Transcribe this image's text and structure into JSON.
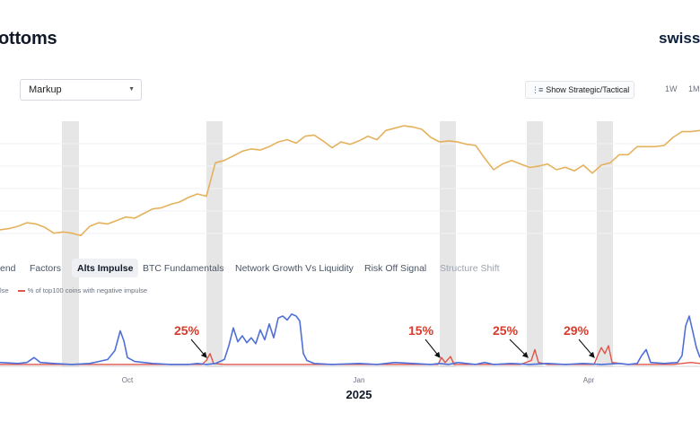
{
  "header": {
    "title": "ottoms",
    "brand": "swissb"
  },
  "controls": {
    "select_value": "Markup",
    "strategic_label": "Show Strategic/Tactical",
    "range_buttons": [
      "1W",
      "1M"
    ]
  },
  "tabs": [
    {
      "label": "end",
      "state": "normal"
    },
    {
      "label": "Factors",
      "state": "normal"
    },
    {
      "label": "Alts Impulse",
      "state": "active"
    },
    {
      "label": "BTC Fundamentals",
      "state": "normal"
    },
    {
      "label": "Network Growth Vs Liquidity",
      "state": "normal"
    },
    {
      "label": "Risk Off Signal",
      "state": "normal"
    },
    {
      "label": "Structure Shift",
      "state": "faded"
    }
  ],
  "legend": {
    "items": [
      {
        "label": "lse",
        "color": "#4f6fd8"
      },
      {
        "label": "% of top100 coins with negative impulse",
        "color": "#e0554a"
      }
    ]
  },
  "chart_data": [
    {
      "type": "line",
      "title": "",
      "ylabel": "",
      "color": "#e4b25c",
      "x": [
        0,
        10,
        20,
        30,
        40,
        50,
        60,
        70,
        80,
        90,
        100,
        110,
        120,
        130,
        140,
        150,
        160,
        170,
        180,
        190,
        200,
        210,
        220,
        230,
        240,
        250,
        260,
        270,
        280,
        290,
        300,
        310,
        320,
        330,
        340,
        350,
        360,
        370,
        380,
        390,
        400,
        410,
        420,
        430,
        440,
        450,
        460,
        470,
        480,
        490,
        500,
        510,
        520,
        530,
        540,
        550,
        560,
        570,
        580,
        590,
        600,
        610,
        620,
        630,
        640,
        650,
        660,
        670,
        680,
        690,
        700,
        710,
        720,
        730,
        740,
        750,
        760,
        770,
        780
      ],
      "values": [
        41,
        42,
        44,
        47,
        46,
        43,
        38,
        39,
        38,
        36,
        44,
        47,
        46,
        49,
        52,
        51,
        55,
        59,
        60,
        63,
        65,
        69,
        72,
        70,
        99,
        101,
        105,
        109,
        111,
        110,
        113,
        117,
        119,
        116,
        122,
        123,
        118,
        112,
        117,
        115,
        118,
        122,
        119,
        127,
        129,
        131,
        130,
        128,
        121,
        117,
        118,
        117,
        115,
        114,
        103,
        93,
        98,
        101,
        98,
        95,
        96,
        98,
        93,
        95,
        92,
        97,
        90,
        97,
        99,
        106,
        106,
        113,
        113,
        113,
        114,
        121,
        126,
        126,
        127
      ],
      "shaded_bands_x": [
        [
          69,
          88
        ],
        [
          230,
          248
        ],
        [
          490,
          508
        ],
        [
          587,
          605
        ],
        [
          665,
          683
        ]
      ]
    },
    {
      "type": "line",
      "xlabel": "2025",
      "x_ticks": [
        "Oct",
        "Jan",
        "Apr"
      ],
      "series": [
        {
          "color": "#4f6fd8",
          "points": [
            [
              0,
              3
            ],
            [
              20,
              2
            ],
            [
              30,
              3
            ],
            [
              38,
              8
            ],
            [
              45,
              3
            ],
            [
              60,
              2
            ],
            [
              80,
              1
            ],
            [
              100,
              2
            ],
            [
              110,
              4
            ],
            [
              120,
              6
            ],
            [
              128,
              15
            ],
            [
              134,
              35
            ],
            [
              138,
              25
            ],
            [
              142,
              8
            ],
            [
              150,
              4
            ],
            [
              170,
              2
            ],
            [
              190,
              1
            ],
            [
              210,
              1
            ],
            [
              220,
              2
            ],
            [
              230,
              1
            ],
            [
              240,
              2
            ],
            [
              250,
              6
            ],
            [
              255,
              20
            ],
            [
              260,
              38
            ],
            [
              265,
              24
            ],
            [
              270,
              30
            ],
            [
              275,
              23
            ],
            [
              280,
              28
            ],
            [
              285,
              22
            ],
            [
              290,
              36
            ],
            [
              295,
              26
            ],
            [
              300,
              42
            ],
            [
              305,
              28
            ],
            [
              310,
              48
            ],
            [
              315,
              50
            ],
            [
              320,
              46
            ],
            [
              325,
              52
            ],
            [
              330,
              50
            ],
            [
              334,
              45
            ],
            [
              338,
              12
            ],
            [
              342,
              5
            ],
            [
              350,
              2
            ],
            [
              370,
              1
            ],
            [
              400,
              2
            ],
            [
              420,
              1
            ],
            [
              440,
              3
            ],
            [
              460,
              2
            ],
            [
              480,
              1
            ],
            [
              490,
              2
            ],
            [
              500,
              1
            ],
            [
              510,
              3
            ],
            [
              520,
              2
            ],
            [
              530,
              1
            ],
            [
              540,
              3
            ],
            [
              550,
              1
            ],
            [
              570,
              2
            ],
            [
              590,
              1
            ],
            [
              610,
              2
            ],
            [
              630,
              1
            ],
            [
              650,
              2
            ],
            [
              670,
              1
            ],
            [
              690,
              2
            ],
            [
              700,
              1
            ],
            [
              710,
              2
            ],
            [
              715,
              10
            ],
            [
              720,
              16
            ],
            [
              725,
              3
            ],
            [
              740,
              2
            ],
            [
              755,
              3
            ],
            [
              760,
              10
            ],
            [
              764,
              40
            ],
            [
              768,
              50
            ],
            [
              772,
              34
            ],
            [
              776,
              18
            ],
            [
              780,
              8
            ]
          ]
        },
        {
          "color": "#e0554a",
          "points": [
            [
              0,
              1
            ],
            [
              50,
              1
            ],
            [
              100,
              1
            ],
            [
              150,
              1
            ],
            [
              200,
              1
            ],
            [
              225,
              1
            ],
            [
              230,
              5
            ],
            [
              234,
              12
            ],
            [
              238,
              2
            ],
            [
              250,
              1
            ],
            [
              300,
              1
            ],
            [
              350,
              1
            ],
            [
              400,
              1
            ],
            [
              450,
              1
            ],
            [
              488,
              1
            ],
            [
              492,
              8
            ],
            [
              496,
              3
            ],
            [
              502,
              9
            ],
            [
              506,
              1
            ],
            [
              550,
              1
            ],
            [
              580,
              1
            ],
            [
              592,
              5
            ],
            [
              596,
              16
            ],
            [
              600,
              3
            ],
            [
              610,
              1
            ],
            [
              650,
              1
            ],
            [
              662,
              1
            ],
            [
              666,
              10
            ],
            [
              670,
              18
            ],
            [
              674,
              12
            ],
            [
              678,
              20
            ],
            [
              682,
              3
            ],
            [
              700,
              1
            ],
            [
              750,
              1
            ],
            [
              770,
              3
            ],
            [
              780,
              2
            ]
          ]
        }
      ],
      "annotations": [
        "25%",
        "15%",
        "25%",
        "29%"
      ]
    }
  ]
}
